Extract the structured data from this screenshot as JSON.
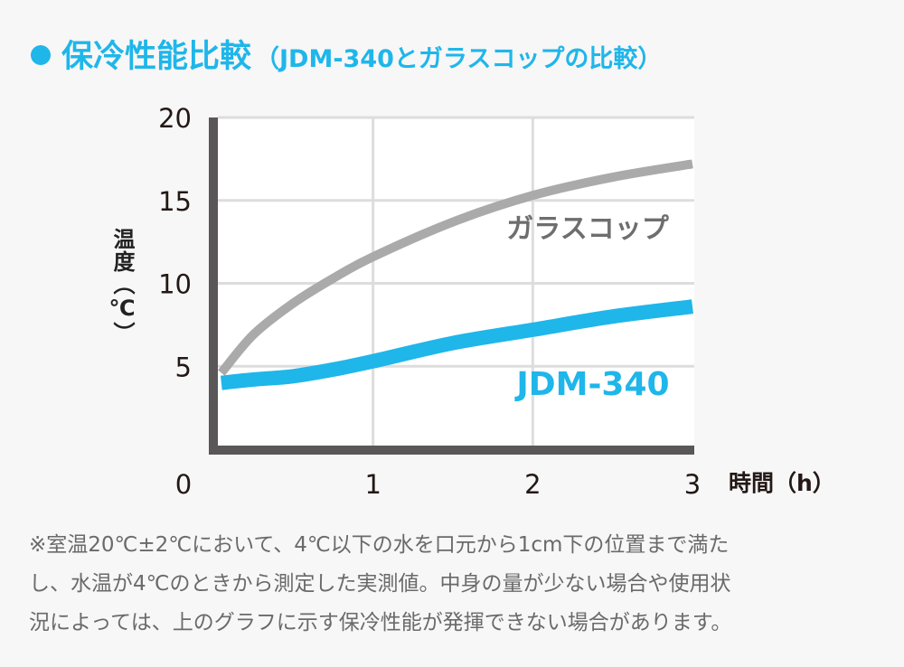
{
  "title": {
    "main": "保冷性能比較",
    "sub": "（JDM-340とガラスコップの比較）"
  },
  "colors": {
    "accent": "#1fb6ea",
    "glass": "#aaaaaa",
    "axis": "#595757",
    "grid": "#dddddd",
    "glass_label": "#6e6e6e"
  },
  "chart_data": {
    "type": "line",
    "title": "保冷性能比較（JDM-340とガラスコップの比較）",
    "xlabel": "時間（h）",
    "ylabel": "温度（℃）",
    "xlim": [
      0,
      3
    ],
    "ylim": [
      0,
      20
    ],
    "xticks": [
      "0",
      "1",
      "2",
      "3"
    ],
    "yticks": [
      "5",
      "10",
      "15",
      "20"
    ],
    "grid": true,
    "x": [
      0.05,
      0.25,
      0.5,
      0.75,
      1.0,
      1.5,
      2.0,
      2.5,
      3.0
    ],
    "series": [
      {
        "name": "ガラスコップ",
        "color": "#aaaaaa",
        "values": [
          4.6,
          6.9,
          8.8,
          10.3,
          11.6,
          13.7,
          15.3,
          16.4,
          17.2
        ]
      },
      {
        "name": "JDM-340",
        "color": "#1fb6ea",
        "values": [
          4.0,
          4.2,
          4.4,
          4.8,
          5.3,
          6.4,
          7.2,
          8.0,
          8.6
        ]
      }
    ]
  },
  "note": [
    "※室温20℃±2℃において、4℃以下の水を口元から1cm下の位置まで満た",
    "し、水温が4℃のときから測定した実測値。中身の量が少ない場合や使用状",
    "況によっては、上のグラフに示す保冷性能が発揮できない場合があります。"
  ]
}
